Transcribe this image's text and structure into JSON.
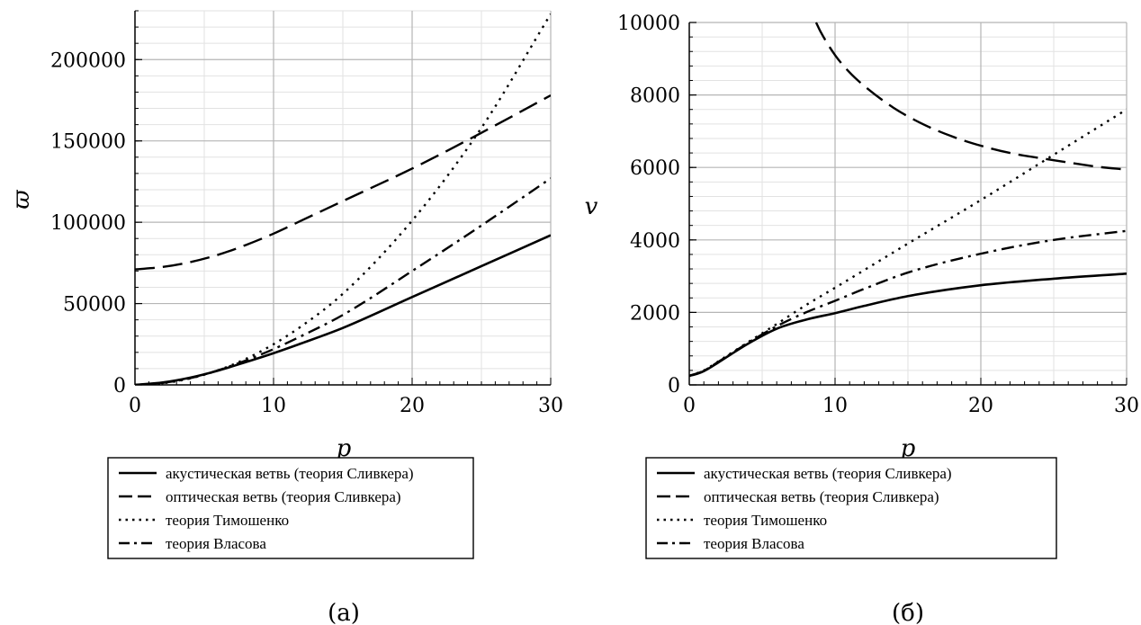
{
  "chart_data": [
    {
      "type": "line",
      "panel": "a",
      "caption": "(a)",
      "xlabel": "p",
      "ylabel": "ϖ",
      "xlim": [
        0,
        30
      ],
      "ylim": [
        0,
        230000
      ],
      "xticks": [
        0,
        10,
        20,
        30
      ],
      "yticks": [
        0,
        50000,
        100000,
        150000,
        200000
      ],
      "grid": true,
      "legend_placement": "bottom",
      "series": [
        {
          "name": "акустическая ветвь (теория Сливкера)",
          "style": "solid",
          "x": [
            0,
            2,
            4,
            6,
            8,
            10,
            12,
            15,
            20,
            25,
            30
          ],
          "y": [
            0,
            1500,
            4500,
            8800,
            14000,
            19500,
            25500,
            35000,
            54000,
            73000,
            92000
          ]
        },
        {
          "name": "оптическая  ветвь (теория Сливкера)",
          "style": "dashed",
          "x": [
            0,
            2,
            4,
            6,
            8,
            10,
            12,
            15,
            20,
            25,
            30
          ],
          "y": [
            71000,
            72500,
            75500,
            80000,
            86000,
            93000,
            101000,
            113000,
            133000,
            155000,
            178000
          ]
        },
        {
          "name": "теория Тимошенко",
          "style": "dotted",
          "x": [
            0,
            2,
            4,
            6,
            8,
            10,
            12,
            15,
            20,
            25,
            30
          ],
          "y": [
            0,
            1000,
            4000,
            9000,
            16000,
            25000,
            36000,
            56000,
            101000,
            158000,
            228000
          ]
        },
        {
          "name": "теория Власова",
          "style": "dashdot",
          "x": [
            0,
            2,
            4,
            6,
            8,
            10,
            12,
            15,
            20,
            25,
            30
          ],
          "y": [
            0,
            1200,
            4200,
            9000,
            15000,
            22000,
            30000,
            43000,
            70000,
            98000,
            127000
          ]
        }
      ]
    },
    {
      "type": "line",
      "panel": "b",
      "caption": "(б)",
      "xlabel": "p",
      "ylabel": "v",
      "xlim": [
        0,
        30
      ],
      "ylim": [
        0,
        10000
      ],
      "xticks": [
        0,
        10,
        20,
        30
      ],
      "yticks": [
        0,
        2000,
        4000,
        6000,
        8000,
        10000
      ],
      "grid": true,
      "legend_placement": "bottom",
      "series": [
        {
          "name": "акустическая ветвь (теория Сливкера)",
          "style": "solid",
          "x": [
            0,
            0.5,
            1,
            2,
            3,
            4,
            6,
            8,
            10,
            12,
            15,
            20,
            25,
            30
          ],
          "y": [
            250,
            300,
            380,
            620,
            880,
            1130,
            1550,
            1800,
            1980,
            2180,
            2450,
            2750,
            2930,
            3070
          ]
        },
        {
          "name": "оптическая  ветвь (теория Сливкера)",
          "style": "dashed",
          "x": [
            8.7,
            9,
            10,
            11,
            12,
            14,
            16,
            18,
            20,
            22,
            25,
            28,
            30
          ],
          "y": [
            10000,
            9750,
            9100,
            8620,
            8250,
            7650,
            7200,
            6860,
            6600,
            6400,
            6200,
            6020,
            5940
          ]
        },
        {
          "name": "теория Тимошенко",
          "style": "dotted",
          "x": [
            0,
            1,
            2,
            4,
            6,
            8,
            10,
            15,
            20,
            25,
            30
          ],
          "y": [
            250,
            400,
            650,
            1170,
            1680,
            2200,
            2680,
            3900,
            5100,
            6350,
            7600
          ]
        },
        {
          "name": "теория Власова",
          "style": "dashdot",
          "x": [
            0,
            1,
            2,
            4,
            6,
            8,
            10,
            12,
            15,
            20,
            25,
            30
          ],
          "y": [
            250,
            390,
            640,
            1150,
            1620,
            2000,
            2320,
            2650,
            3100,
            3620,
            4000,
            4250
          ]
        }
      ]
    }
  ]
}
